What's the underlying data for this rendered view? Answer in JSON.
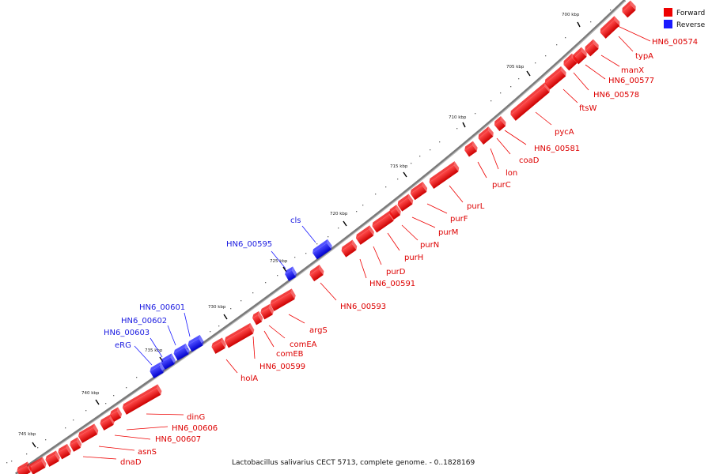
{
  "legend": {
    "forward_label": "Forward",
    "reverse_label": "Reverse",
    "forward_color": "#ee0000",
    "reverse_color": "#1a1aff"
  },
  "caption": "Lactobacillus salivarius CECT 5713, complete genome. - 0..1828169",
  "ticks": [
    "700 kbp",
    "705 kbp",
    "710 kbp",
    "715 kbp",
    "720 kbp",
    "725 kbp",
    "730 kbp",
    "735 kbp",
    "740 kbp",
    "745 kbp"
  ],
  "forward_genes": [
    "HN6_00574",
    "typA",
    "manX",
    "HN6_00577",
    "HN6_00578",
    "ftsW",
    "pycA",
    "HN6_00581",
    "coaD",
    "lon",
    "purC",
    "purL",
    "purF",
    "purM",
    "purN",
    "purH",
    "purD",
    "HN6_00591",
    "HN6_00593",
    "argS",
    "comEA",
    "comEB",
    "HN6_00599",
    "holA",
    "dinG",
    "HN6_00606",
    "HN6_00607",
    "asnS",
    "dnaD"
  ],
  "reverse_genes": [
    "cls",
    "HN6_00595",
    "HN6_00601",
    "HN6_00602",
    "HN6_00603",
    "eRG"
  ]
}
